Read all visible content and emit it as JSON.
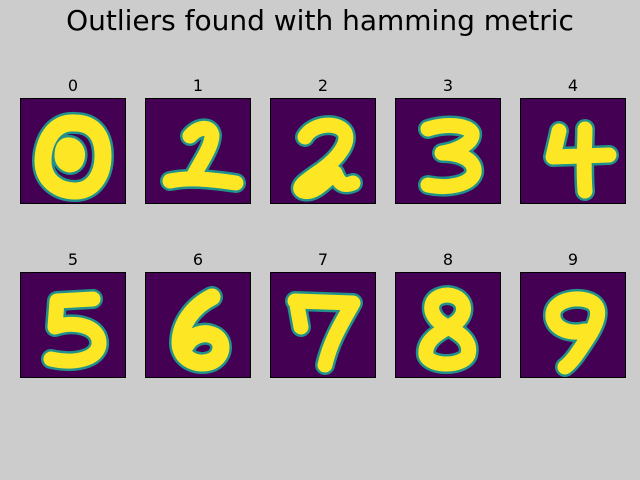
{
  "figure": {
    "title": "Outliers found with hamming metric"
  },
  "chart_data": {
    "type": "image-grid",
    "title": "Outliers found with hamming metric",
    "colormap": {
      "background": "#440154",
      "edge": "#21918c",
      "foreground": "#fde725"
    },
    "panels": [
      {
        "title": "0",
        "digit": "0"
      },
      {
        "title": "1",
        "digit": "1"
      },
      {
        "title": "2",
        "digit": "2"
      },
      {
        "title": "3",
        "digit": "3"
      },
      {
        "title": "4",
        "digit": "4"
      },
      {
        "title": "5",
        "digit": "5"
      },
      {
        "title": "6",
        "digit": "6"
      },
      {
        "title": "7",
        "digit": "7"
      },
      {
        "title": "8",
        "digit": "8"
      },
      {
        "title": "9",
        "digit": "9"
      }
    ]
  }
}
